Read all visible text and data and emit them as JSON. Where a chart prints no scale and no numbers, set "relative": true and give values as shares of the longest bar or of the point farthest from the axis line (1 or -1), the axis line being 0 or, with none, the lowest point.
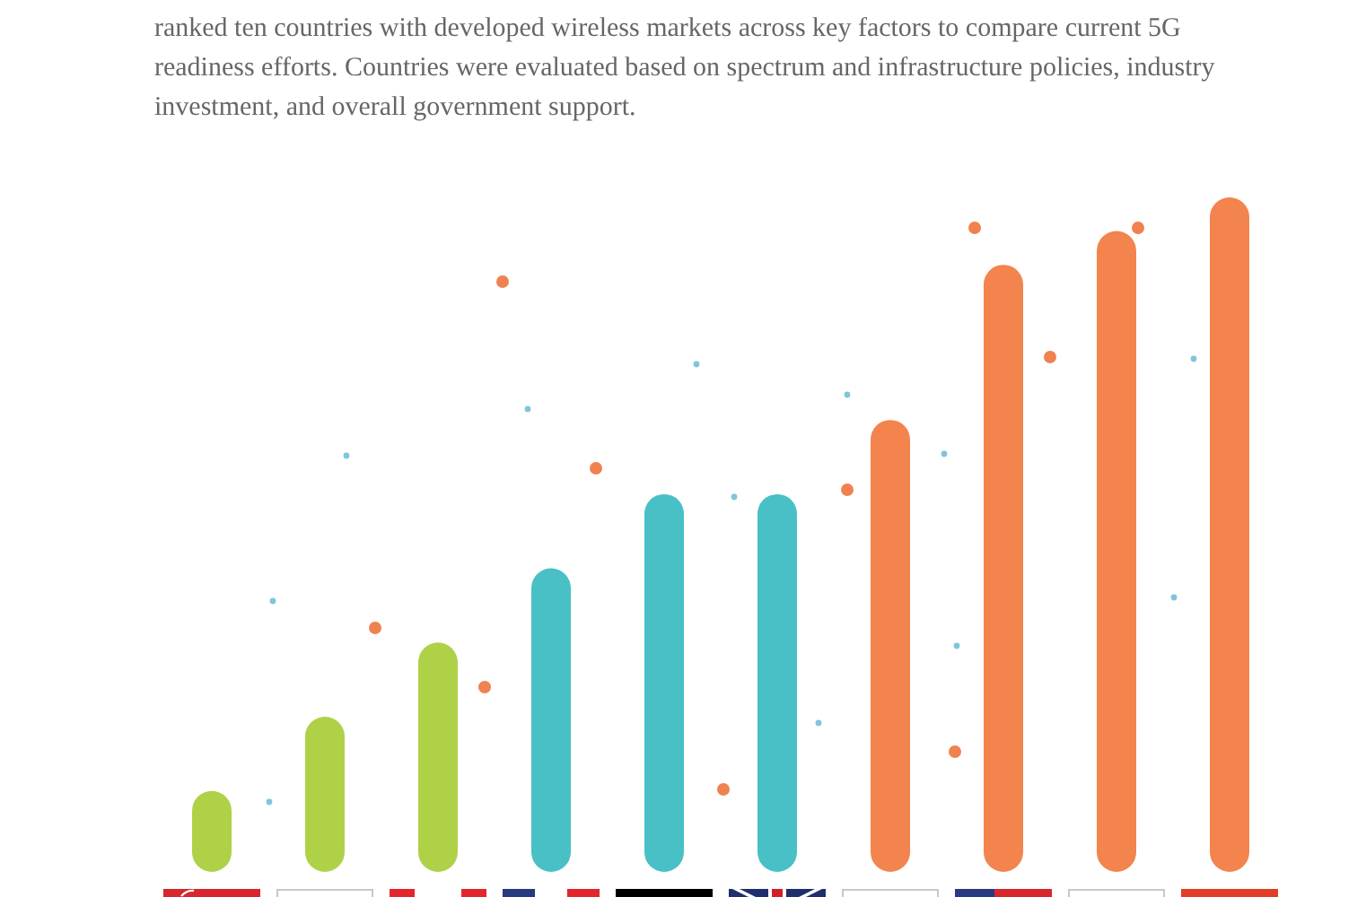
{
  "chart_data": {
    "type": "bar",
    "subtitle": "ranked ten countries with developed wireless markets across key factors to compare current 5G readiness efforts. Countries were evaluated based on spectrum and infrastructure policies, industry investment, and overall government support.",
    "categories": [
      null,
      null,
      null,
      null,
      null,
      null,
      null,
      null,
      null,
      null
    ],
    "values": [
      0.12,
      0.23,
      0.34,
      0.45,
      0.56,
      0.56,
      0.67,
      0.9,
      0.95,
      1
    ],
    "colors": [
      "#afd147",
      "#afd147",
      "#afd147",
      "#48c0c6",
      "#48c0c6",
      "#48c0c6",
      "#f3844d",
      "#f3844d",
      "#f3844d",
      "#f3844d"
    ],
    "relative": true
  }
}
